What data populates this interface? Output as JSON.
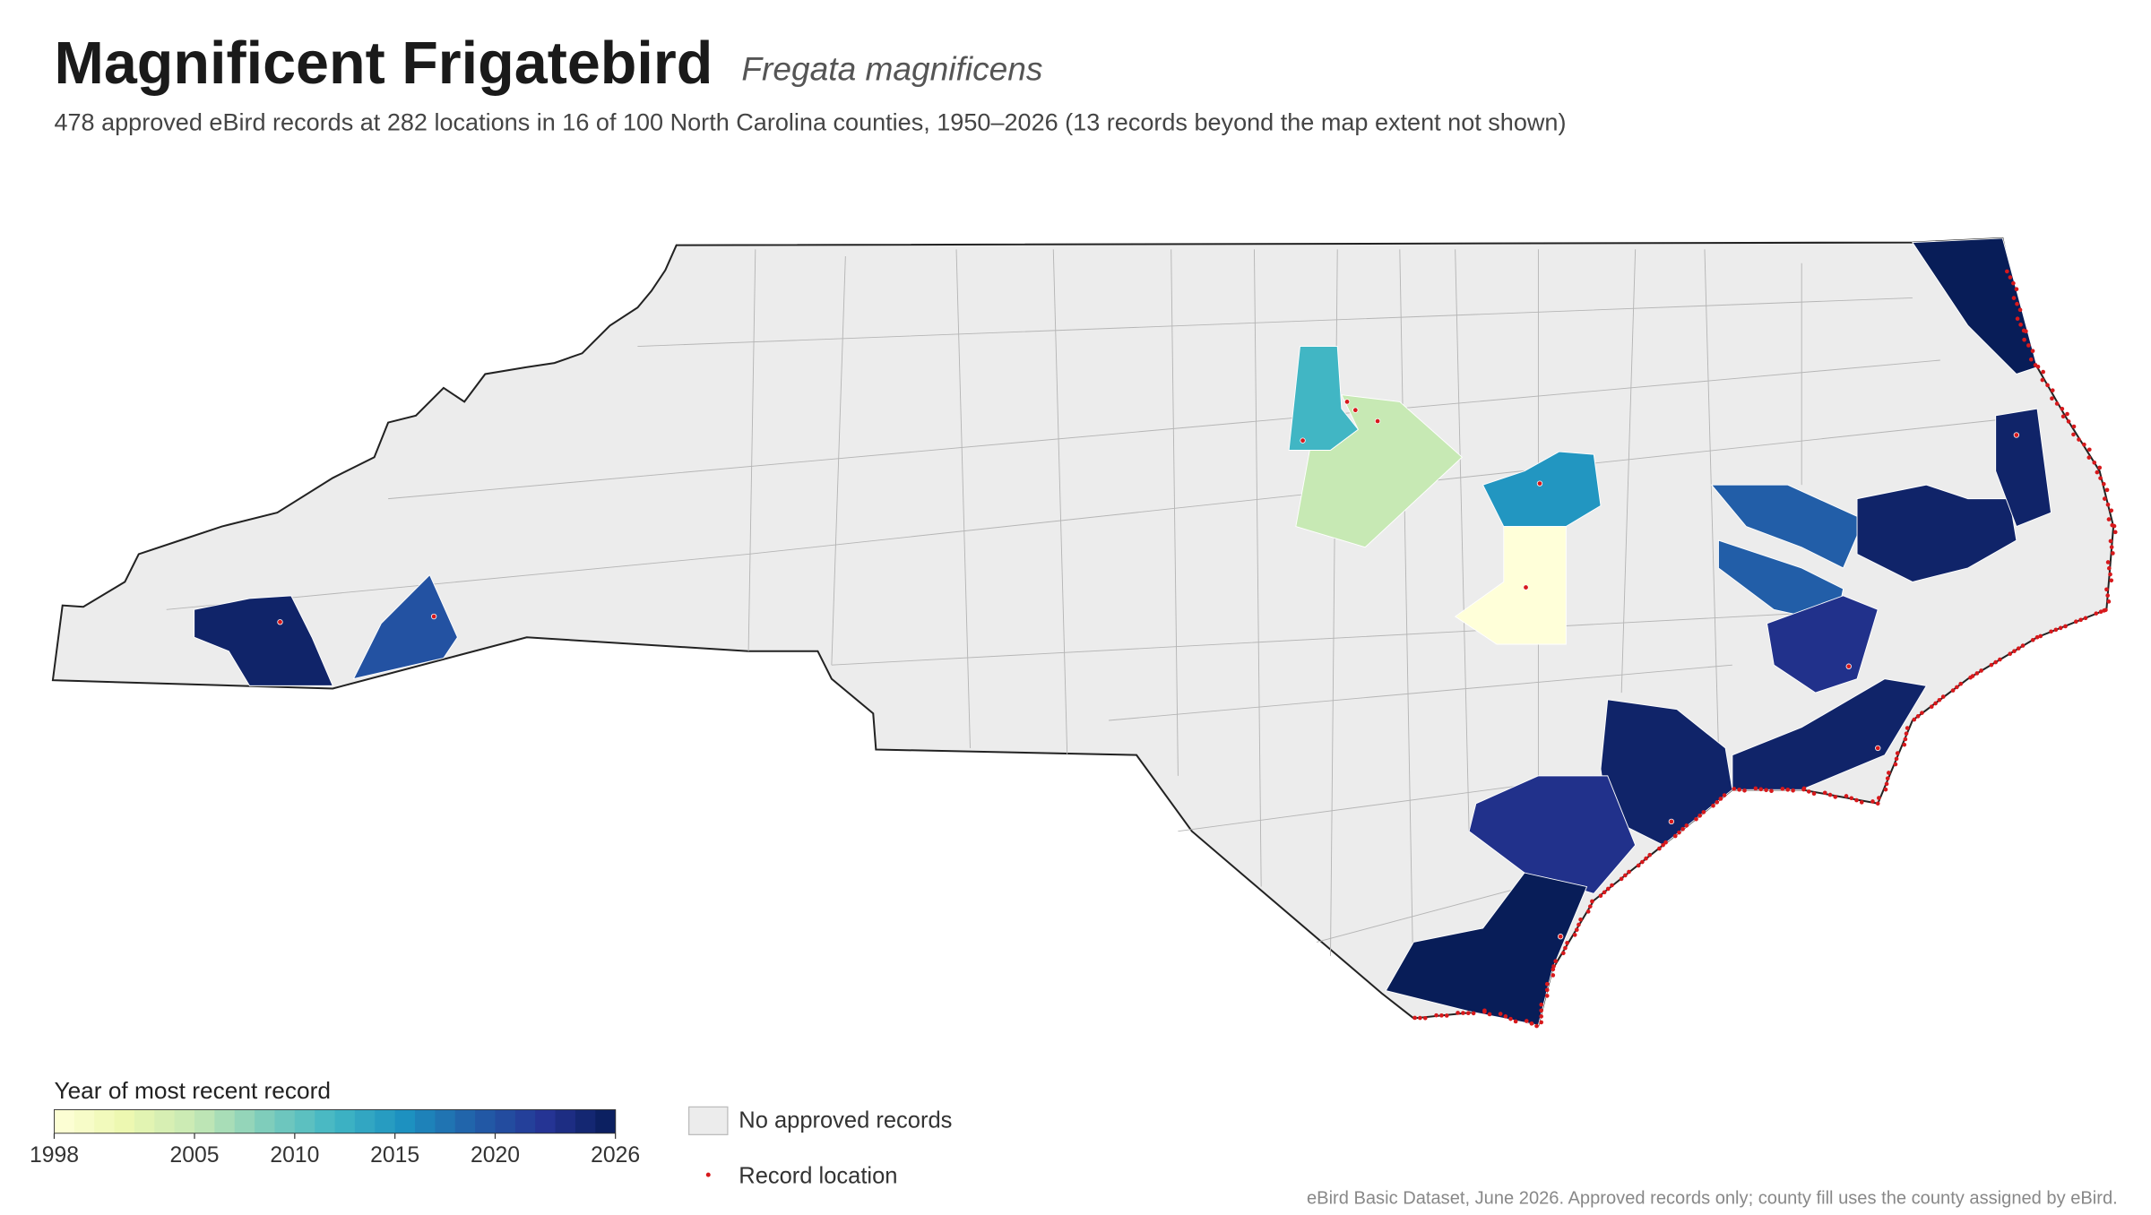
{
  "title": "Magnificent Frigatebird",
  "scientific_name": "Fregata magnificens",
  "subtitle": "478 approved eBird records at 282 locations in 16 of 100 North Carolina counties, 1950–2026 (13 records beyond the map extent not shown)",
  "legend": {
    "title": "Year of most recent record",
    "range": [
      1998,
      2026
    ],
    "ticks": [
      1998,
      2005,
      2010,
      2015,
      2020,
      2026
    ],
    "no_records_label": "No approved records",
    "record_label": "Record location"
  },
  "colormap": [
    "#ffffd9",
    "#edf8b1",
    "#c7e9b4",
    "#7fcdbb",
    "#41b6c4",
    "#1d91c0",
    "#225ea8",
    "#253494",
    "#081d58"
  ],
  "no_record_color": "#ececec",
  "record_color": "#d7191c",
  "county_years": [
    2025,
    2020,
    2012,
    2005,
    2015,
    1998,
    2019,
    2019,
    2023,
    2025,
    2025,
    2026,
    2025,
    2025,
    2023,
    2026
  ],
  "source_note": "eBird Basic Dataset, June 2026. Approved records only; county fill uses the county assigned by eBird."
}
